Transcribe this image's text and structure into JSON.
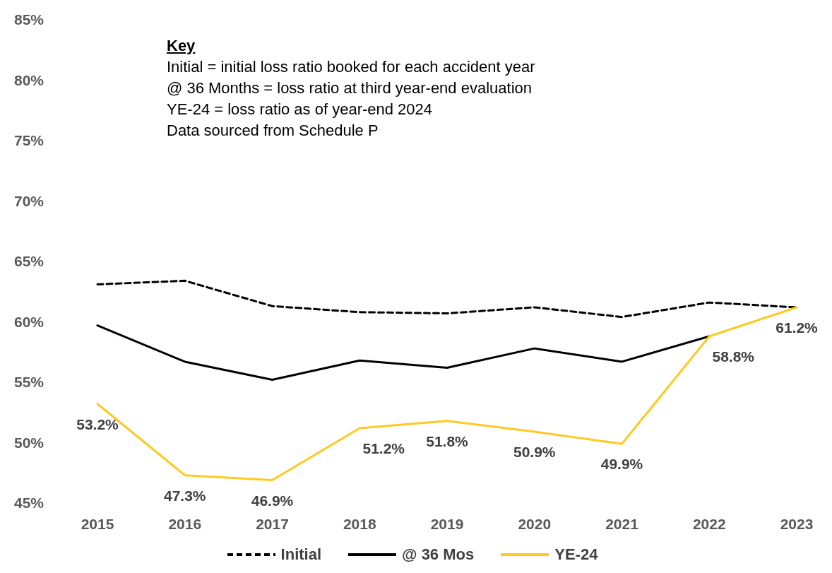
{
  "chart_data": {
    "type": "line",
    "categories": [
      "2015",
      "2016",
      "2017",
      "2018",
      "2019",
      "2020",
      "2021",
      "2022",
      "2023"
    ],
    "series": [
      {
        "name": "Initial",
        "color": "#000000",
        "line_style": "dashed",
        "values": [
          63.1,
          63.4,
          61.3,
          60.8,
          60.7,
          61.2,
          60.4,
          61.6,
          61.2
        ]
      },
      {
        "name": "@ 36 Mos",
        "color": "#000000",
        "line_style": "solid",
        "values": [
          59.7,
          56.7,
          55.2,
          56.8,
          56.2,
          57.8,
          56.7,
          58.8,
          null
        ]
      },
      {
        "name": "YE-24",
        "color": "#ffc920",
        "line_style": "solid",
        "values": [
          53.2,
          47.3,
          46.9,
          51.2,
          51.8,
          50.9,
          49.9,
          58.8,
          61.2
        ],
        "value_labels": [
          "53.2%",
          "47.3%",
          "46.9%",
          "51.2%",
          "51.8%",
          "50.9%",
          "49.9%",
          "58.8%",
          "61.2%"
        ]
      }
    ],
    "ylim": [
      45,
      85
    ],
    "yticks": [
      {
        "value": 45,
        "label": "45%"
      },
      {
        "value": 50,
        "label": "50%"
      },
      {
        "value": 55,
        "label": "55%"
      },
      {
        "value": 60,
        "label": "60%"
      },
      {
        "value": 65,
        "label": "65%"
      },
      {
        "value": 70,
        "label": "70%"
      },
      {
        "value": 75,
        "label": "75%"
      },
      {
        "value": 80,
        "label": "80%"
      },
      {
        "value": 85,
        "label": "85%"
      }
    ],
    "grid": false,
    "legend": "bottom",
    "marker": "none",
    "annotations": [
      "Key",
      "Initial = initial loss ratio booked for each accident year",
      "@ 36 Months =  loss ratio at third year-end evaluation",
      "YE-24 = loss ratio as of year-end 2024",
      "Data sourced from Schedule P"
    ]
  }
}
